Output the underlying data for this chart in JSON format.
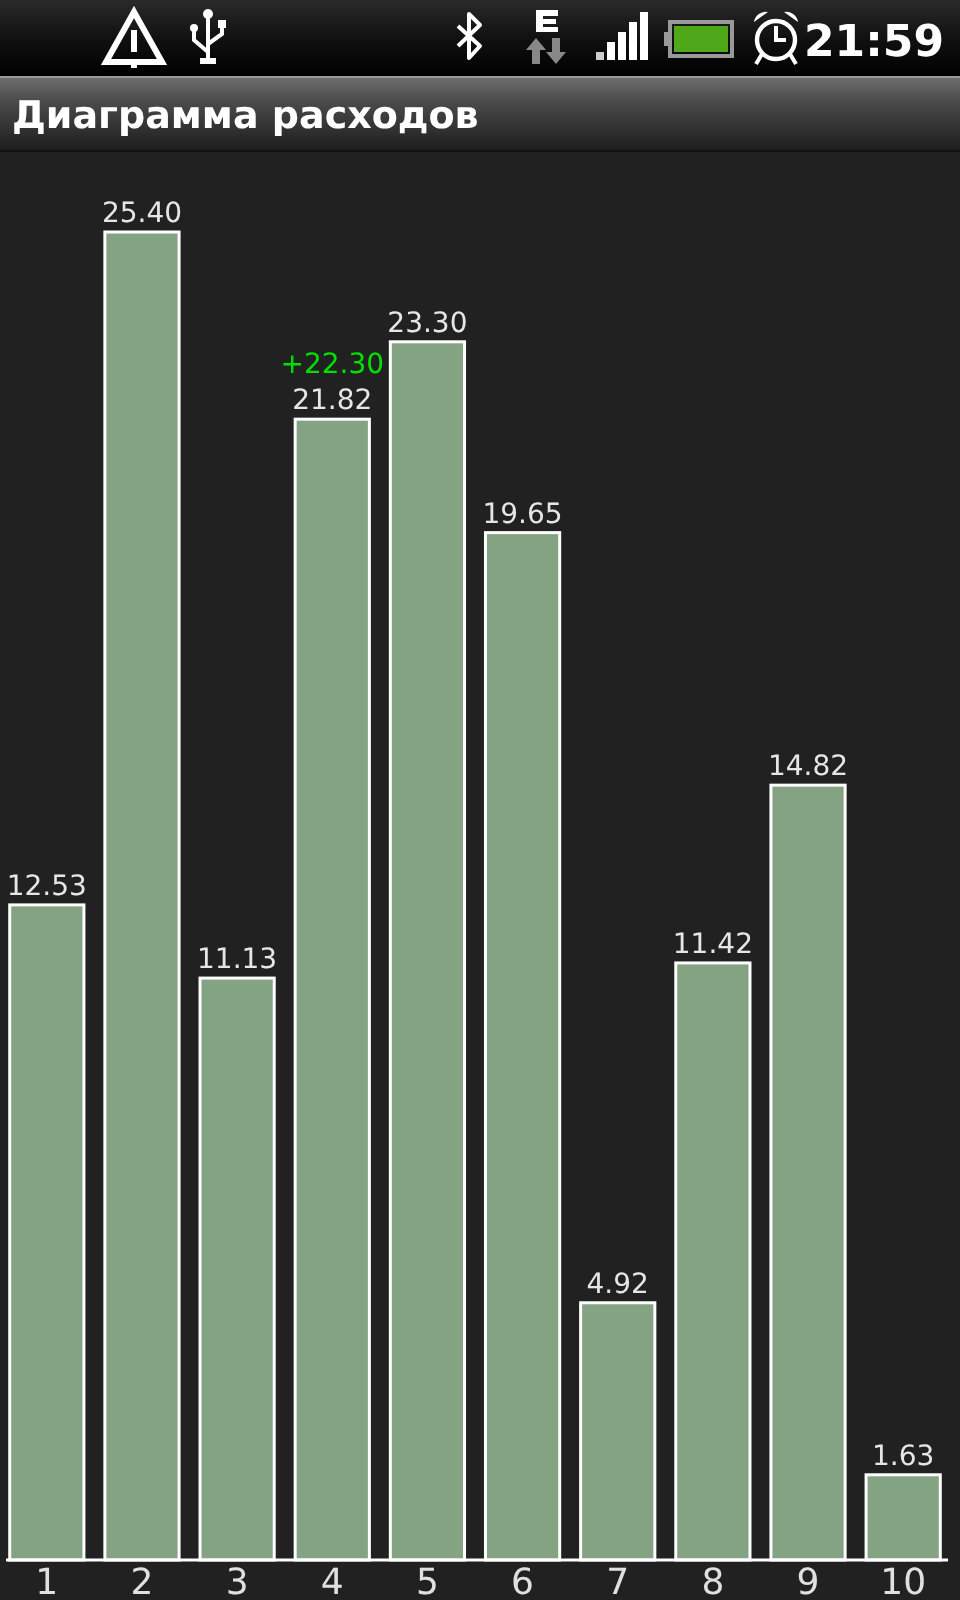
{
  "chart_data": {
    "type": "bar",
    "title": "Диаграмма расходов",
    "categories": [
      "1",
      "2",
      "3",
      "4",
      "5",
      "6",
      "7",
      "8",
      "9",
      "10"
    ],
    "values": [
      12.53,
      25.4,
      11.13,
      21.82,
      23.3,
      19.65,
      4.92,
      11.42,
      14.82,
      1.63
    ],
    "value_labels": [
      "12.53",
      "25.40",
      "11.13",
      "21.82",
      "23.30",
      "19.65",
      "4.92",
      "11.42",
      "14.82",
      "1.63"
    ],
    "color": "#84a383",
    "annotations": [
      {
        "text": "+22.30",
        "x": "4",
        "y": 21.82
      },
      "21:59"
    ]
  }
}
